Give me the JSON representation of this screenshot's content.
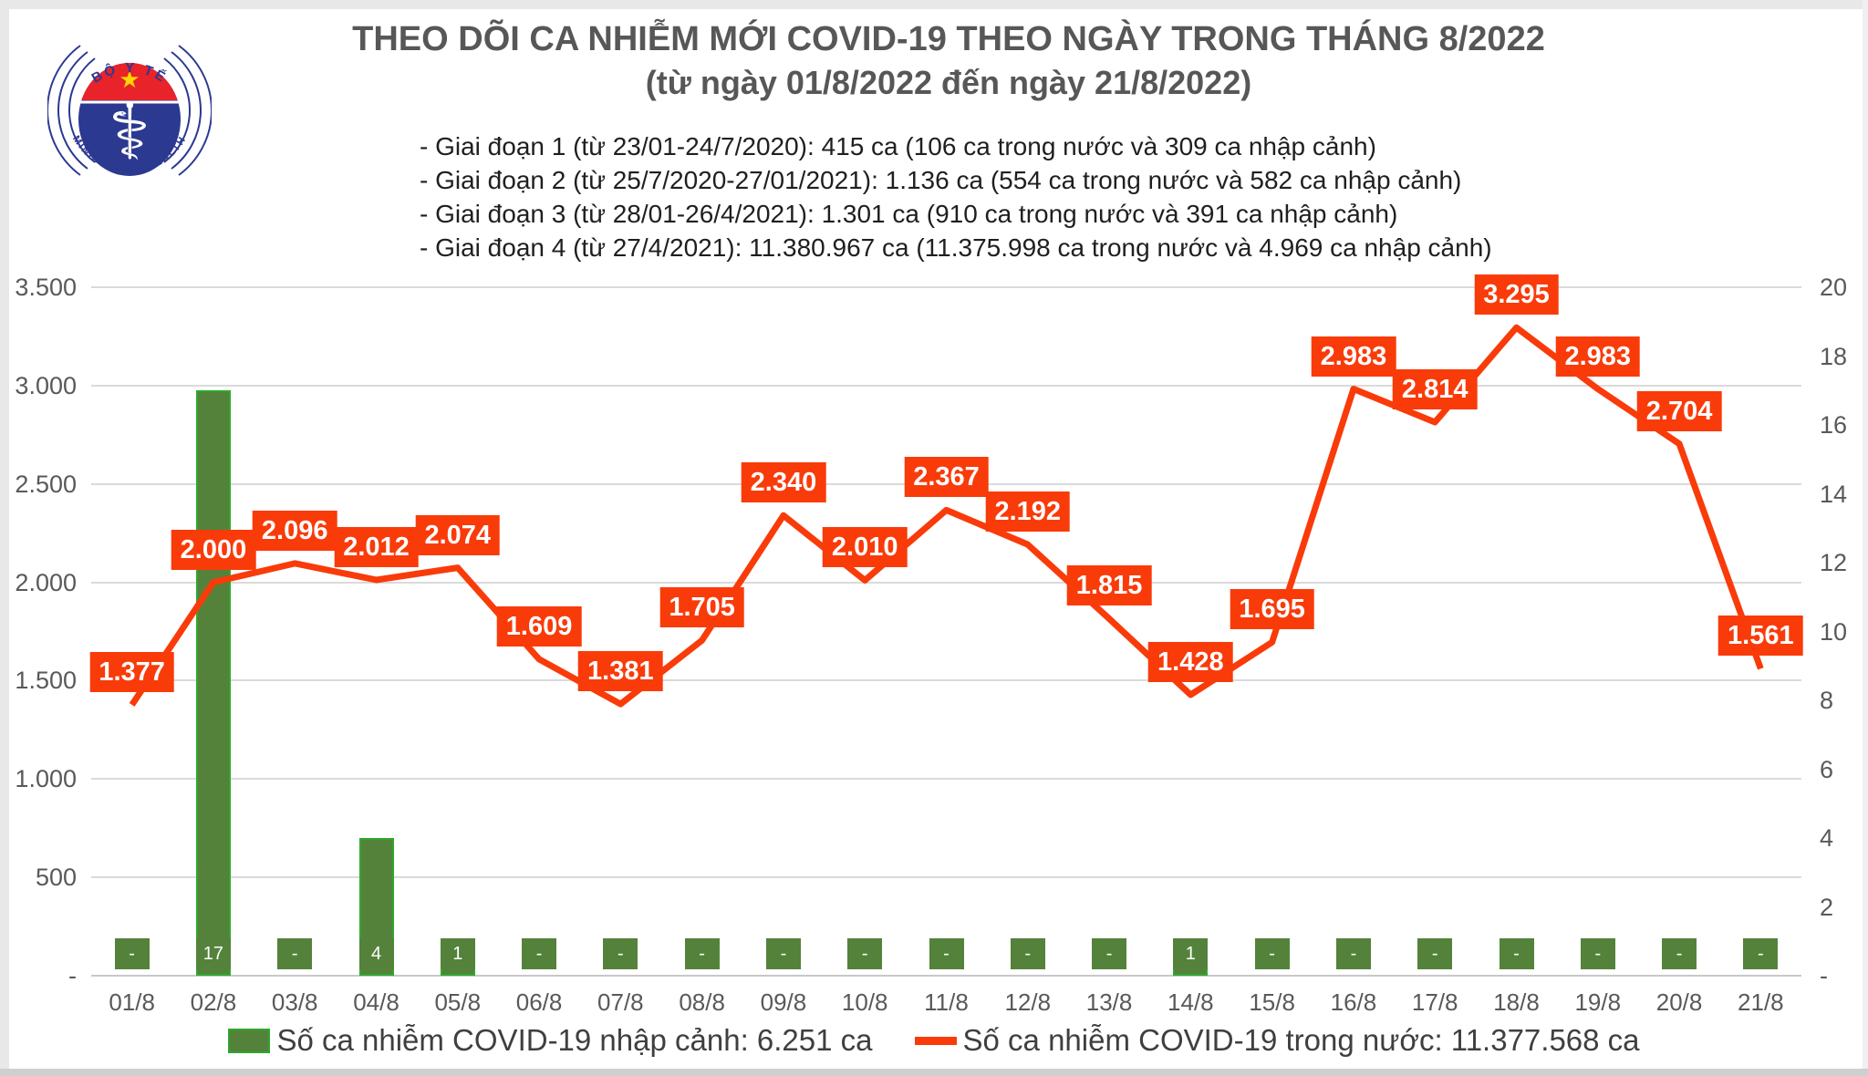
{
  "logo": {
    "top_text": "BỘ Y TẾ",
    "bottom_text": "MINISTRY OF HEALTH"
  },
  "header": {
    "title": "THEO DÕI CA NHIỄM MỚI COVID-19 THEO NGÀY TRONG THÁNG 8/2022",
    "subtitle": "(từ ngày 01/8/2022 đến ngày 21/8/2022)",
    "notes": [
      "- Giai đoạn 1 (từ 23/01-24/7/2020): 415 ca (106 ca trong nước và 309 ca nhập cảnh)",
      "- Giai đoạn 2 (từ 25/7/2020-27/01/2021): 1.136 ca (554 ca trong nước và 582 ca nhập cảnh)",
      "- Giai đoạn 3 (từ 28/01-26/4/2021): 1.301 ca (910 ca trong nước và 391 ca nhập cảnh)",
      "- Giai đoạn 4 (từ 27/4/2021): 11.380.967 ca (11.375.998 ca trong nước và 4.969 ca nhập cảnh)"
    ]
  },
  "chart_data": {
    "type": "bar+line combo",
    "categories": [
      "01/8",
      "02/8",
      "03/8",
      "04/8",
      "05/8",
      "06/8",
      "07/8",
      "08/8",
      "09/8",
      "10/8",
      "11/8",
      "12/8",
      "13/8",
      "14/8",
      "15/8",
      "16/8",
      "17/8",
      "18/8",
      "19/8",
      "20/8",
      "21/8"
    ],
    "series": [
      {
        "name": "Số ca nhiễm COVID-19 nhập cảnh",
        "type": "bar",
        "axis": "right",
        "color": "#54823B",
        "border_color": "#2EA82E",
        "values": [
          0,
          17,
          0,
          4,
          1,
          0,
          0,
          0,
          0,
          0,
          0,
          0,
          0,
          1,
          0,
          0,
          0,
          0,
          0,
          0,
          0
        ],
        "labels": [
          "-",
          "17",
          "-",
          "4",
          "1",
          "-",
          "-",
          "-",
          "-",
          "-",
          "-",
          "-",
          "-",
          "1",
          "-",
          "-",
          "-",
          "-",
          "-",
          "-",
          "-"
        ]
      },
      {
        "name": "Số ca nhiễm COVID-19 trong nước",
        "type": "line",
        "axis": "left",
        "color": "#F93B0A",
        "values": [
          1377,
          2000,
          2096,
          2012,
          2074,
          1609,
          1381,
          1705,
          2340,
          2010,
          2367,
          2192,
          1815,
          1428,
          1695,
          2983,
          2814,
          3295,
          2983,
          2704,
          1561
        ],
        "labels": [
          "1.377",
          "2.000",
          "2.096",
          "2.012",
          "2.074",
          "1.609",
          "1.381",
          "1.705",
          "2.340",
          "2.010",
          "2.367",
          "2.192",
          "1.815",
          "1.428",
          "1.695",
          "2.983",
          "2.814",
          "3.295",
          "2.983",
          "2.704",
          "1.561"
        ]
      }
    ],
    "left_axis": {
      "max": 3500,
      "min": 0,
      "ticks": [
        {
          "label": "3.500",
          "value": 3500
        },
        {
          "label": "3.000",
          "value": 3000
        },
        {
          "label": "2.500",
          "value": 2500
        },
        {
          "label": "2.000",
          "value": 2000
        },
        {
          "label": "1.500",
          "value": 1500
        },
        {
          "label": "1.000",
          "value": 1000
        },
        {
          "label": "500",
          "value": 500
        },
        {
          "label": "-",
          "value": 0
        }
      ]
    },
    "right_axis": {
      "max": 20,
      "min": 0,
      "ticks": [
        "20",
        "18",
        "16",
        "14",
        "12",
        "10",
        "8",
        "6",
        "4",
        "2",
        "-"
      ]
    },
    "grid": true,
    "legend_position": "bottom"
  },
  "legend": {
    "items": [
      {
        "label": "Số ca nhiễm COVID-19 nhập cảnh: 6.251 ca",
        "swatch": "bar"
      },
      {
        "label": "Số ca nhiễm COVID-19 trong nước: 11.377.568 ca",
        "swatch": "line"
      }
    ]
  }
}
